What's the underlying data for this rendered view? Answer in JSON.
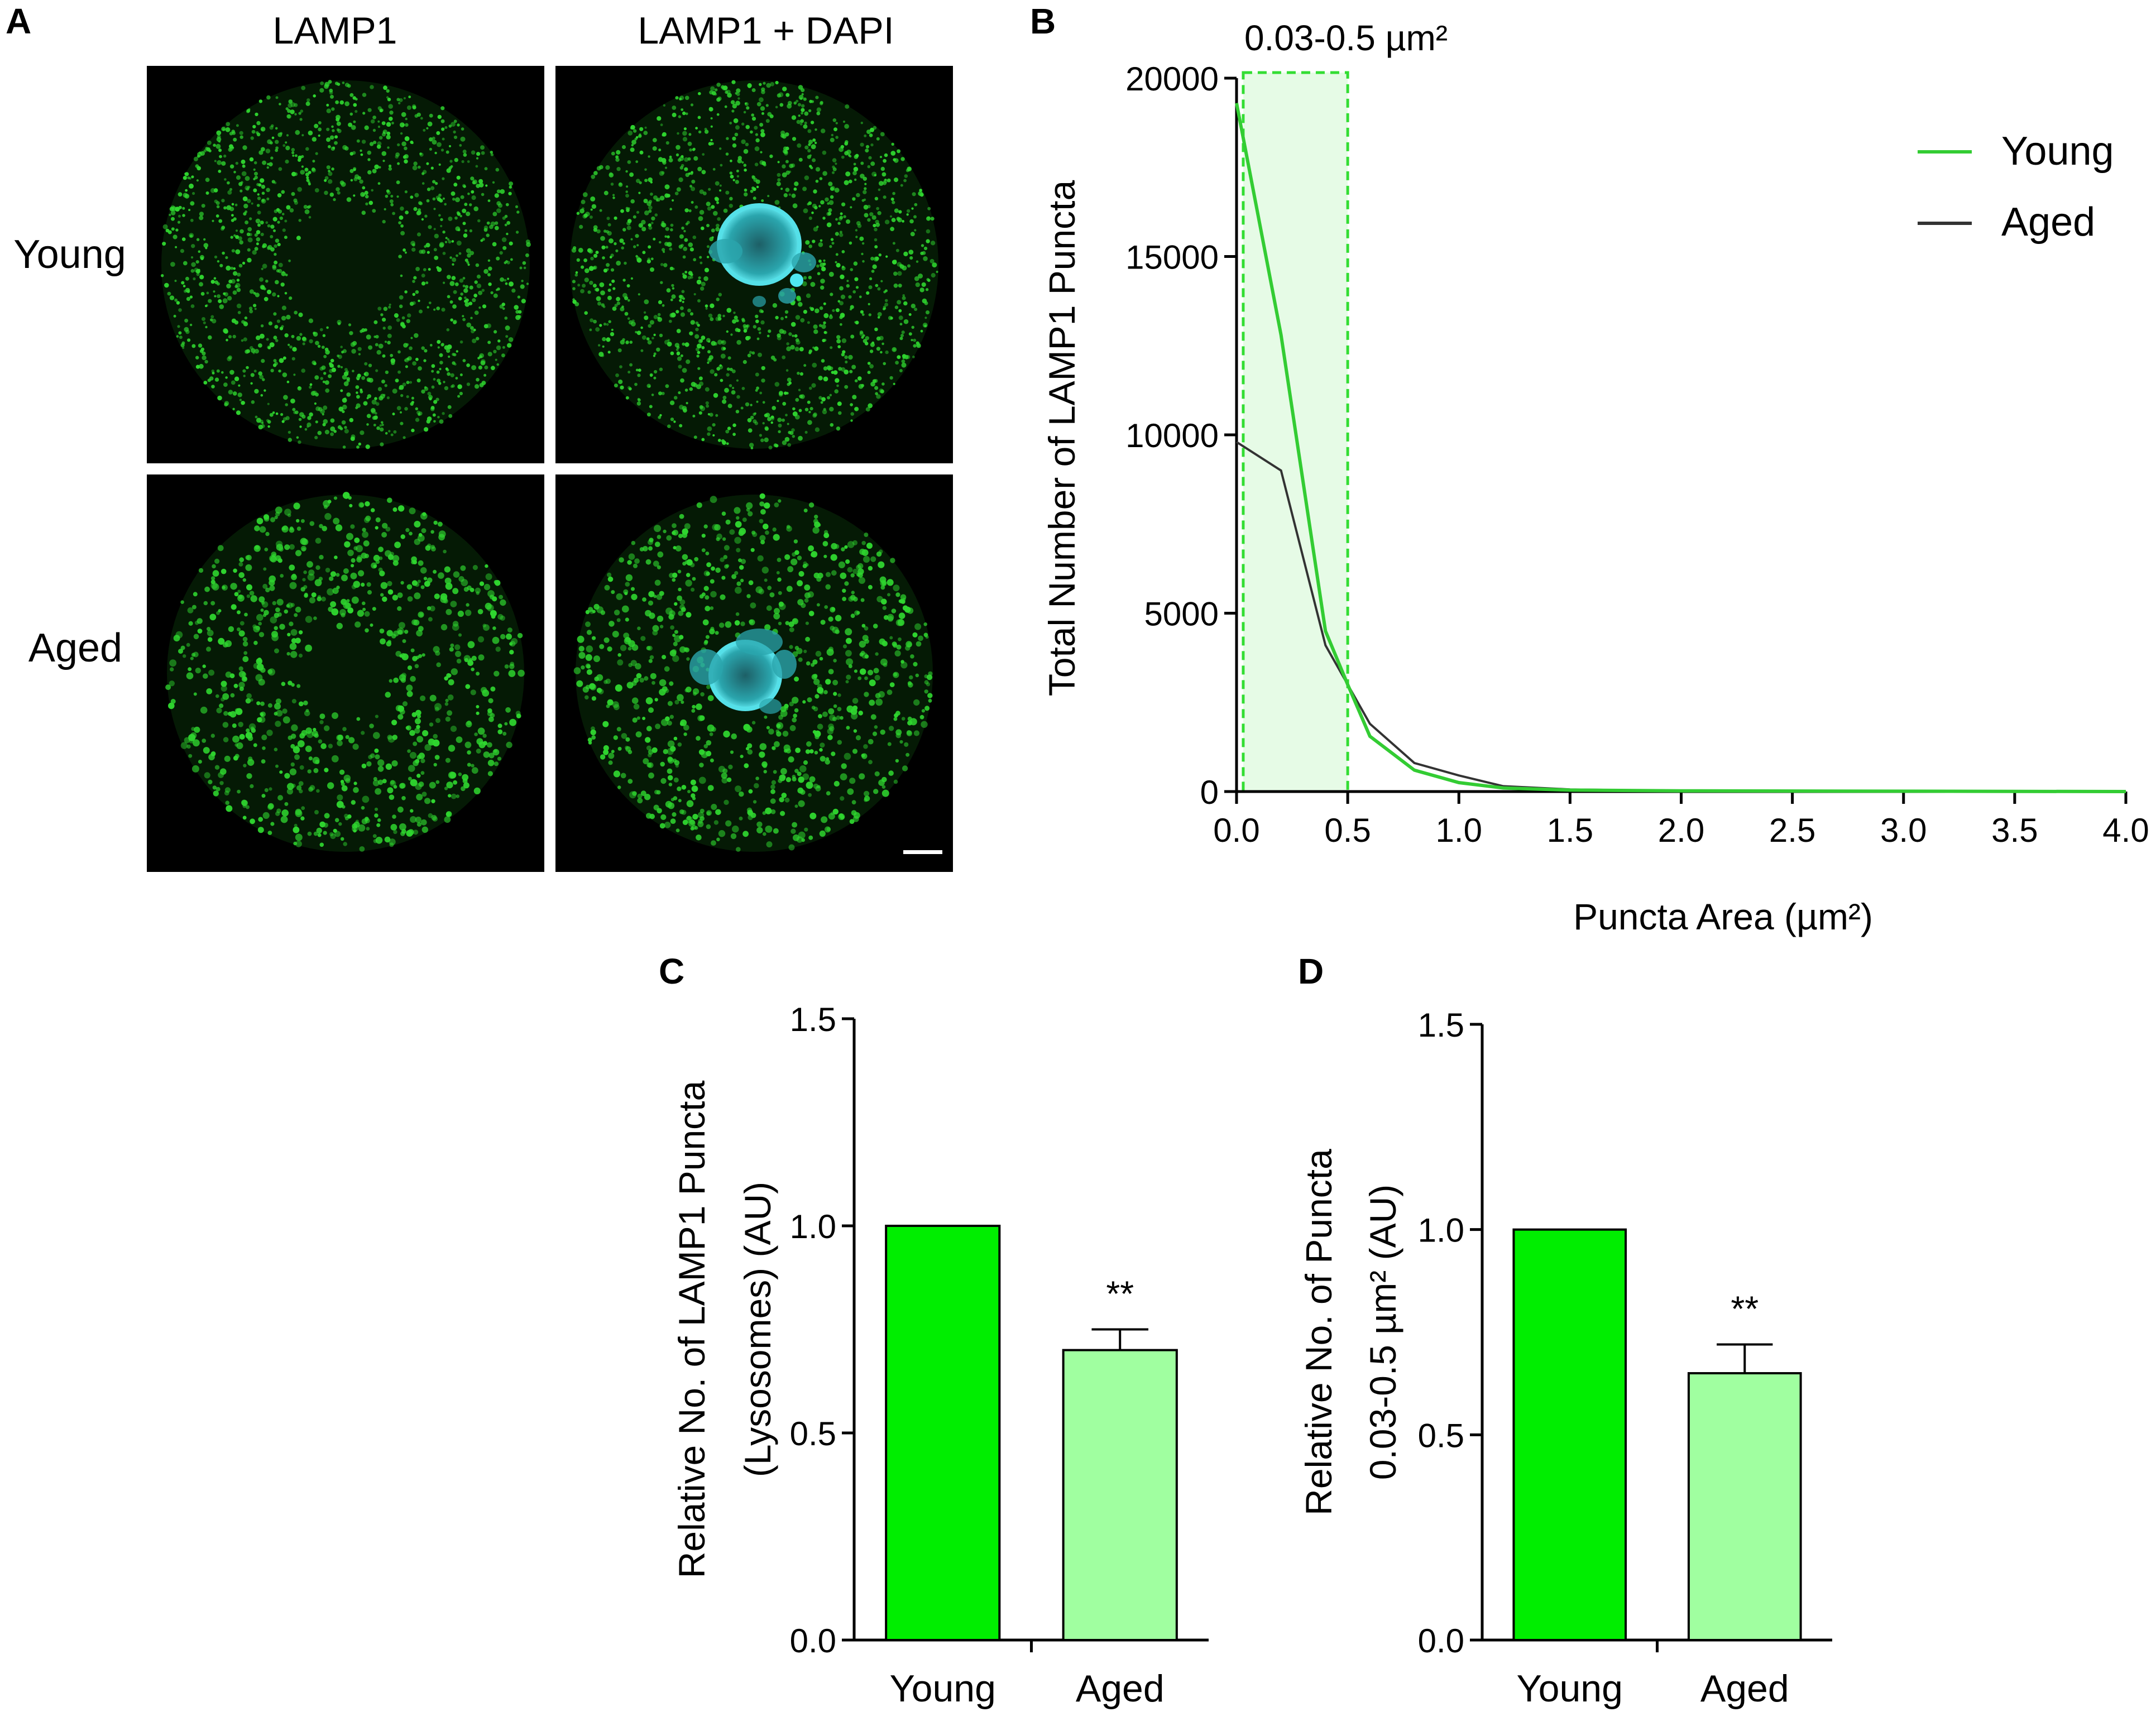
{
  "panel_labels": {
    "a": "A",
    "b": "B",
    "c": "C",
    "d": "D"
  },
  "panel_a": {
    "column_labels": [
      "LAMP1",
      "LAMP1 + DAPI"
    ],
    "row_labels": [
      "Young",
      "Aged"
    ],
    "colors": {
      "background": "#000000",
      "lamp1": "#2fd62f",
      "dapi": "#3fd3d8"
    }
  },
  "chart_data": [
    {
      "panel": "B",
      "type": "line",
      "xlabel": "Puncta Area (µm²)",
      "ylabel": "Total Number of LAMP1 Puncta",
      "xlim": [
        0,
        4
      ],
      "ylim": [
        0,
        20000
      ],
      "xticks": [
        "0.0",
        "0.5",
        "1.0",
        "1.5",
        "2.0",
        "2.5",
        "3.0",
        "3.5",
        "4.0"
      ],
      "yticks": [
        "0",
        "5000",
        "10000",
        "15000",
        "20000"
      ],
      "highlight": {
        "label": "0.03-0.5 µm²",
        "x_range": [
          0.03,
          0.5
        ],
        "color": "#33dd33"
      },
      "legend_position": "top-right",
      "series": [
        {
          "name": "Young",
          "color": "#33cc33",
          "x": [
            0.0,
            0.2,
            0.4,
            0.5,
            0.6,
            0.8,
            1.0,
            1.2,
            1.5,
            2.0,
            3.0,
            4.0
          ],
          "y": [
            19300,
            12800,
            4500,
            3000,
            1550,
            600,
            250,
            100,
            40,
            20,
            10,
            0
          ]
        },
        {
          "name": "Aged",
          "color": "#333333",
          "x": [
            0.0,
            0.2,
            0.4,
            0.5,
            0.6,
            0.8,
            1.0,
            1.2,
            1.5,
            2.0,
            3.0,
            4.0
          ],
          "y": [
            9800,
            9000,
            4100,
            3000,
            1900,
            800,
            450,
            150,
            60,
            20,
            10,
            0
          ]
        }
      ]
    },
    {
      "panel": "C",
      "type": "bar",
      "categories": [
        "Young",
        "Aged"
      ],
      "values": [
        1.0,
        0.7
      ],
      "errors": [
        0,
        0.05
      ],
      "colors": [
        "#00ee00",
        "#a0ffa0"
      ],
      "significance": [
        "",
        "**"
      ],
      "ylabel_lines": [
        "Relative No. of LAMP1 Puncta",
        "(Lysosomes) (AU)"
      ],
      "ylim": [
        0,
        1.5
      ],
      "yticks": [
        "0.0",
        "0.5",
        "1.0",
        "1.5"
      ]
    },
    {
      "panel": "D",
      "type": "bar",
      "categories": [
        "Young",
        "Aged"
      ],
      "values": [
        1.0,
        0.65
      ],
      "errors": [
        0,
        0.07
      ],
      "colors": [
        "#00ee00",
        "#a0ffa0"
      ],
      "significance": [
        "",
        "**"
      ],
      "ylabel_lines": [
        "Relative No. of Puncta",
        "0.03-0.5 µm² (AU)"
      ],
      "ylim": [
        0,
        1.5
      ],
      "yticks": [
        "0.0",
        "0.5",
        "1.0",
        "1.5"
      ]
    }
  ]
}
